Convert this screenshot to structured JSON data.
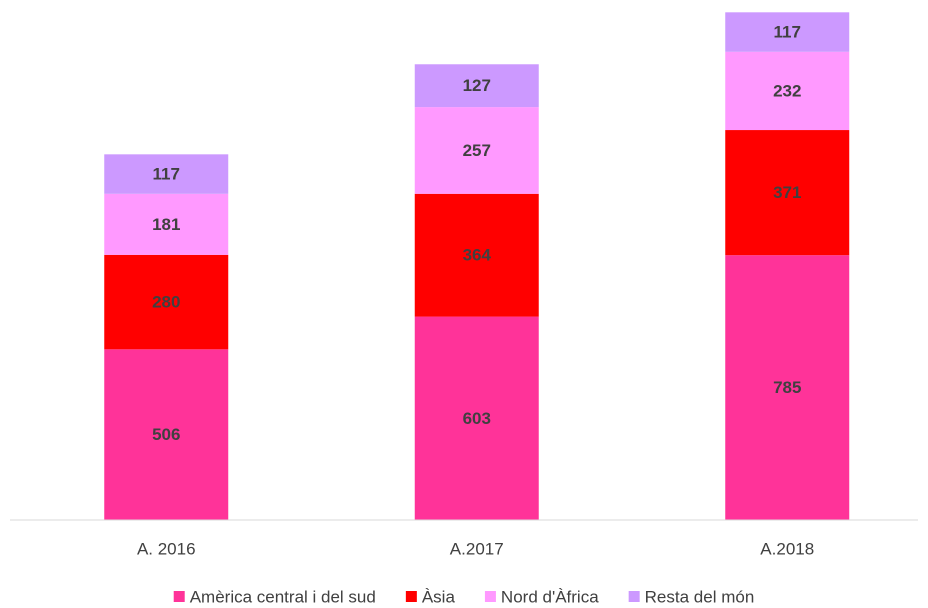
{
  "chart_data": {
    "type": "bar",
    "stacked": true,
    "categories": [
      "A. 2016",
      "A.2017",
      "A.2018"
    ],
    "ylim": [
      0,
      1500
    ],
    "series": [
      {
        "name": "Amèrica central i del sud",
        "color": "#ff3399",
        "values": [
          506,
          603,
          785
        ]
      },
      {
        "name": "Àsia",
        "color": "#ff0000",
        "values": [
          280,
          364,
          371
        ]
      },
      {
        "name": "Nord d'Àfrica",
        "color": "#ff99ff",
        "values": [
          181,
          257,
          232
        ]
      },
      {
        "name": "Resta del món",
        "color": "#cc99ff",
        "values": [
          117,
          127,
          117
        ]
      }
    ]
  }
}
